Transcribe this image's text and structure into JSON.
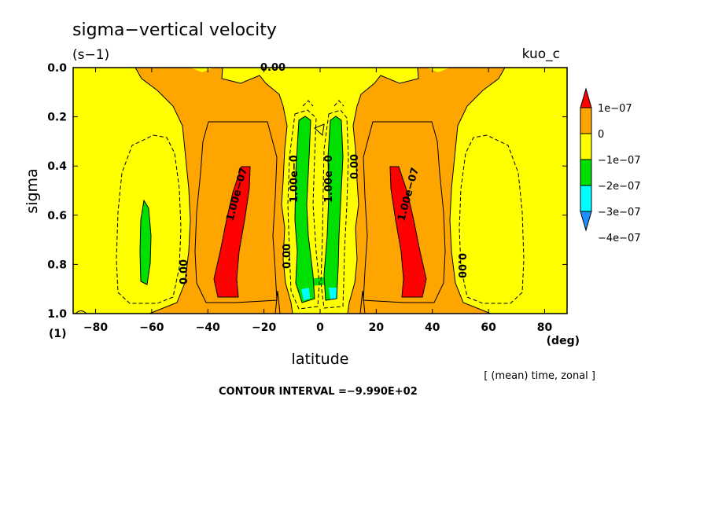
{
  "chart_data": {
    "type": "heatmap",
    "title": "sigma−vertical velocity",
    "units": "(s−1)",
    "dataset": "kuo_c",
    "xlabel": "latitude",
    "xunit": "(deg)",
    "ylabel": "sigma",
    "yunit": "(1)",
    "xlim": [
      -88,
      88
    ],
    "ylim": [
      1.0,
      0.0
    ],
    "xticks": [
      -80,
      -60,
      -40,
      -20,
      0,
      20,
      40,
      60,
      80
    ],
    "xtick_labels": [
      "−80",
      "−60",
      "−40",
      "−20",
      "0",
      "20",
      "40",
      "60",
      "80"
    ],
    "yticks": [
      0.0,
      0.2,
      0.4,
      0.6,
      0.8,
      1.0
    ],
    "ytick_labels": [
      "0.0",
      "0.2",
      "0.4",
      "0.6",
      "0.8",
      "1.0"
    ],
    "averaging": "[ (mean) time, zonal ]",
    "contour_interval": "CONTOUR INTERVAL =−9.990E+02",
    "colorbar": {
      "labels": [
        "1e−07",
        "0",
        "−1e−07",
        "−2e−07",
        "−3e−07",
        "−4e−07"
      ],
      "levels": [
        1e-07,
        0,
        -1e-07,
        -2e-07,
        -3e-07,
        -4e-07
      ],
      "colors": [
        "#ff0000",
        "#ffa500",
        "#ffff00",
        "#00e000",
        "#00ffff",
        "#1e90ff"
      ]
    },
    "contour_labels": [
      "0.00",
      "1.00e−07",
      "1.00e−07",
      "1.00e−0",
      "1.00e−0",
      "0.00",
      "0.00",
      "0.00",
      "0.00"
    ],
    "regions": [
      {
        "name": "background",
        "min": -1e-07,
        "max": 0,
        "color": "#ffff00"
      },
      {
        "name": "positive band south",
        "lat_range": [
          -50,
          -10
        ],
        "sigma_range": [
          0.0,
          0.95
        ],
        "color": "#ffa500"
      },
      {
        "name": "positive band north",
        "lat_range": [
          10,
          50
        ],
        "sigma_range": [
          0.0,
          0.95
        ],
        "color": "#ffa500"
      },
      {
        "name": "max south",
        "lat_center": -30,
        "sigma_range": [
          0.4,
          0.93
        ],
        "value": ">1e-07",
        "color": "#ff0000"
      },
      {
        "name": "max north",
        "lat_center": 30,
        "sigma_range": [
          0.4,
          0.93
        ],
        "value": ">1e-07",
        "color": "#ff0000"
      },
      {
        "name": "equatorial minimum south",
        "lat_center": -6,
        "sigma_range": [
          0.2,
          0.95
        ],
        "value": "-2e-07 to -1e-07",
        "color": "#00e000"
      },
      {
        "name": "equatorial minimum north",
        "lat_center": 6,
        "sigma_range": [
          0.2,
          0.95
        ],
        "value": "-2e-07 to -1e-07",
        "color": "#00e000"
      },
      {
        "name": "high-latitude minimum",
        "lat_center": -63,
        "sigma_range": [
          0.55,
          0.9
        ],
        "value": "-2e-07 to -1e-07",
        "color": "#00e000"
      }
    ]
  }
}
